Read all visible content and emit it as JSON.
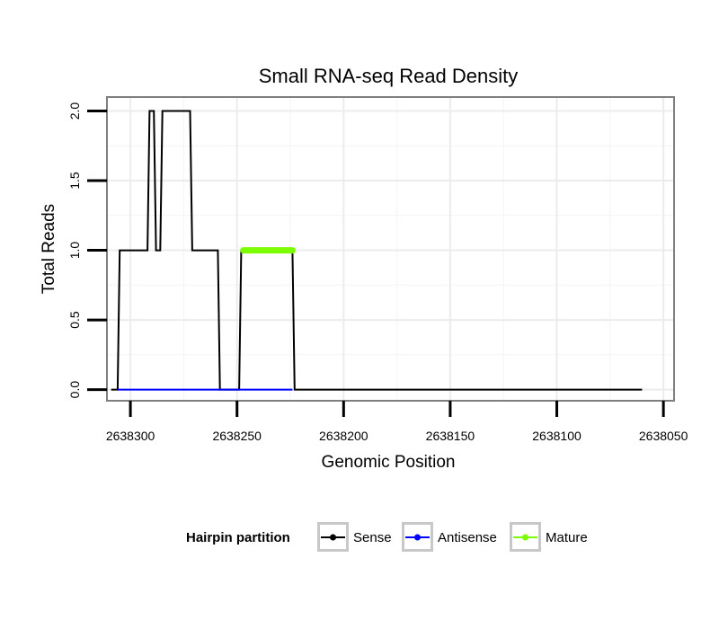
{
  "chart_data": {
    "type": "line",
    "title": "Small RNA-seq Read Density",
    "xlabel": "Genomic Position",
    "ylabel": "Total Reads",
    "xlim": [
      2638311,
      2638045
    ],
    "x_reversed": true,
    "ylim": [
      -0.08,
      2.1
    ],
    "x_ticks": [
      2638300,
      2638250,
      2638200,
      2638150,
      2638100,
      2638050
    ],
    "x_tick_labels": [
      "2638300",
      "2638250",
      "2638200",
      "2638150",
      "2638100",
      "2638050"
    ],
    "y_ticks": [
      0,
      0.5,
      1,
      1.5,
      2
    ],
    "y_tick_labels": [
      "0.0",
      "0.5",
      "1.0",
      "1.5",
      "2.0"
    ],
    "grid": true,
    "legend": {
      "title": "Hairpin partition",
      "position": "bottom",
      "entries": [
        {
          "label": "Sense",
          "color": "#000000"
        },
        {
          "label": "Antisense",
          "color": "#0000ff"
        },
        {
          "label": "Mature",
          "color": "#7cfc00"
        }
      ]
    },
    "series": [
      {
        "name": "Sense",
        "color": "#000000",
        "x": [
          2638309,
          2638306,
          2638305,
          2638292,
          2638291,
          2638289,
          2638288,
          2638286,
          2638285,
          2638272,
          2638271,
          2638259,
          2638258,
          2638249,
          2638248,
          2638224,
          2638223,
          2638060
        ],
        "y": [
          0,
          0,
          1,
          1,
          2,
          2,
          1,
          1,
          2,
          2,
          1,
          1,
          0,
          0,
          1,
          1,
          0,
          0
        ]
      },
      {
        "name": "Antisense",
        "color": "#0000ff",
        "x": [
          2638306,
          2638224
        ],
        "y": [
          0,
          0
        ]
      },
      {
        "name": "Mature",
        "color": "#7cfc00",
        "x": [
          2638247,
          2638224
        ],
        "y": [
          1,
          1
        ]
      }
    ]
  }
}
